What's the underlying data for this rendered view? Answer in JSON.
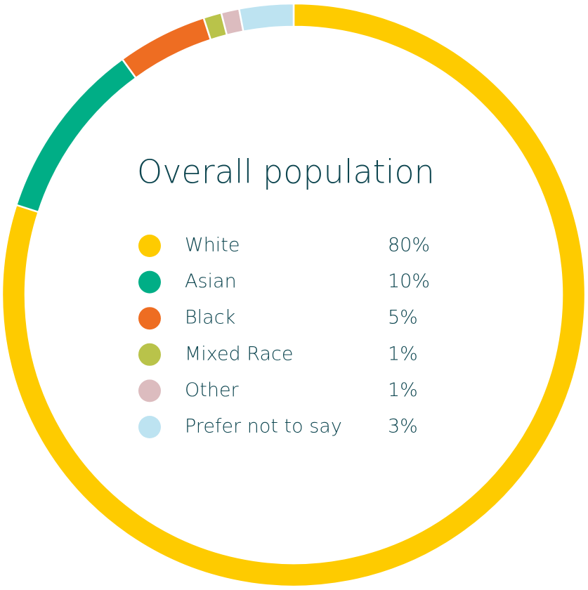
{
  "chart_data": {
    "type": "donut",
    "title": "Overall population",
    "categories": [
      "White",
      "Asian",
      "Black",
      "Mixed Race",
      "Other",
      "Prefer not to say"
    ],
    "values": [
      80,
      10,
      5,
      1,
      1,
      3
    ],
    "value_labels": [
      "80%",
      "10%",
      "5%",
      "1%",
      "1%",
      "3%"
    ],
    "colors": [
      "#fecb00",
      "#00ae86",
      "#ee6d22",
      "#b9c34a",
      "#dcbcbf",
      "#bde3f1"
    ]
  }
}
